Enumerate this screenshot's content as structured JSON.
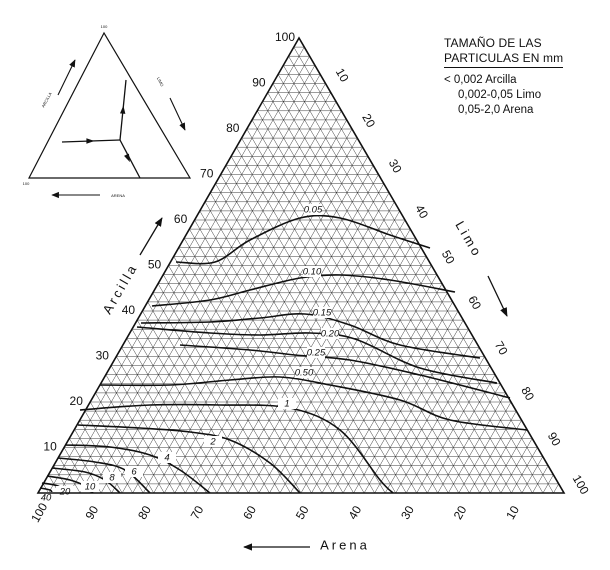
{
  "legend": {
    "title_line1": "TAMAÑO DE LAS",
    "title_line2": "PARTICULAS EN mm",
    "items": [
      "< 0,002 Arcilla",
      "0,002-0,05 Limo",
      "0,05-2,0 Arena"
    ]
  },
  "axes": {
    "left_label": "Arcilla",
    "right_label": "Limo",
    "bottom_label": "Arena"
  },
  "ticks": {
    "left": [
      "10",
      "20",
      "30",
      "40",
      "50",
      "60",
      "70",
      "80",
      "90",
      "100"
    ],
    "right": [
      "10",
      "20",
      "30",
      "40",
      "50",
      "60",
      "70",
      "80",
      "90",
      "100"
    ],
    "bottom": [
      "100",
      "90",
      "80",
      "70",
      "60",
      "50",
      "40",
      "30",
      "20",
      "10"
    ]
  },
  "contours": [
    {
      "label": "0.05"
    },
    {
      "label": "0.10"
    },
    {
      "label": "0.15"
    },
    {
      "label": "0.20"
    },
    {
      "label": "0.25"
    },
    {
      "label": "0.50"
    },
    {
      "label": "1"
    },
    {
      "label": "2"
    },
    {
      "label": "4"
    },
    {
      "label": "6"
    },
    {
      "label": "8"
    },
    {
      "label": "10"
    },
    {
      "label": "20"
    },
    {
      "label": "40"
    }
  ],
  "inset": {
    "top_mark": "100",
    "left_label": "ARCILLA",
    "right_label": "LIMO",
    "bottom_label": "ARENA",
    "left_mark": "100"
  },
  "colors": {
    "ink": "#111111",
    "grid": "#222222",
    "background": "#ffffff"
  }
}
